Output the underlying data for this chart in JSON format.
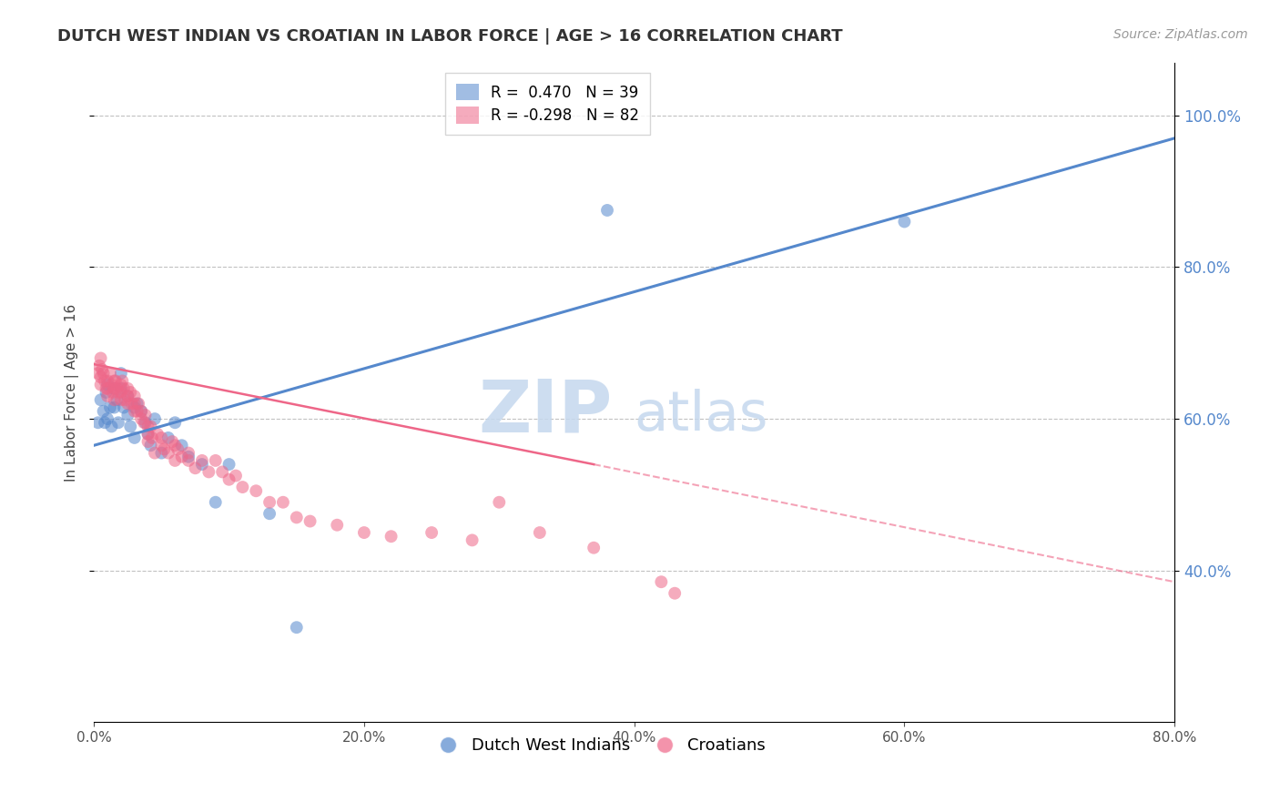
{
  "title": "DUTCH WEST INDIAN VS CROATIAN IN LABOR FORCE | AGE > 16 CORRELATION CHART",
  "source": "Source: ZipAtlas.com",
  "ylabel": "In Labor Force | Age > 16",
  "xlim": [
    0.0,
    0.8
  ],
  "ylim": [
    0.2,
    1.07
  ],
  "xticks": [
    0.0,
    0.2,
    0.4,
    0.6,
    0.8
  ],
  "yticks_right": [
    0.4,
    0.6,
    0.8,
    1.0
  ],
  "grid_color": "#bbbbbb",
  "background": "#ffffff",
  "legend_blue_color": "#5588cc",
  "legend_pink_color": "#ee6688",
  "blue_scatter": {
    "x": [
      0.003,
      0.005,
      0.007,
      0.008,
      0.009,
      0.01,
      0.01,
      0.012,
      0.013,
      0.015,
      0.015,
      0.017,
      0.018,
      0.02,
      0.02,
      0.022,
      0.025,
      0.025,
      0.027,
      0.03,
      0.03,
      0.032,
      0.035,
      0.038,
      0.04,
      0.042,
      0.045,
      0.05,
      0.055,
      0.06,
      0.065,
      0.07,
      0.08,
      0.09,
      0.1,
      0.13,
      0.15,
      0.38,
      0.6
    ],
    "y": [
      0.595,
      0.625,
      0.61,
      0.595,
      0.635,
      0.6,
      0.645,
      0.615,
      0.59,
      0.615,
      0.64,
      0.625,
      0.595,
      0.64,
      0.66,
      0.615,
      0.605,
      0.63,
      0.59,
      0.615,
      0.575,
      0.62,
      0.61,
      0.595,
      0.58,
      0.565,
      0.6,
      0.555,
      0.575,
      0.595,
      0.565,
      0.55,
      0.54,
      0.49,
      0.54,
      0.475,
      0.325,
      0.875,
      0.86
    ]
  },
  "pink_scatter": {
    "x": [
      0.003,
      0.004,
      0.005,
      0.005,
      0.005,
      0.006,
      0.007,
      0.008,
      0.009,
      0.01,
      0.01,
      0.01,
      0.012,
      0.013,
      0.014,
      0.015,
      0.015,
      0.015,
      0.016,
      0.017,
      0.018,
      0.02,
      0.02,
      0.02,
      0.021,
      0.022,
      0.023,
      0.025,
      0.025,
      0.025,
      0.027,
      0.028,
      0.03,
      0.03,
      0.03,
      0.032,
      0.033,
      0.035,
      0.035,
      0.037,
      0.038,
      0.04,
      0.04,
      0.04,
      0.042,
      0.043,
      0.045,
      0.047,
      0.05,
      0.05,
      0.052,
      0.055,
      0.058,
      0.06,
      0.06,
      0.062,
      0.065,
      0.07,
      0.07,
      0.075,
      0.08,
      0.085,
      0.09,
      0.095,
      0.1,
      0.105,
      0.11,
      0.12,
      0.13,
      0.14,
      0.15,
      0.16,
      0.18,
      0.2,
      0.22,
      0.25,
      0.28,
      0.3,
      0.33,
      0.37,
      0.42,
      0.43
    ],
    "y": [
      0.66,
      0.67,
      0.68,
      0.655,
      0.645,
      0.665,
      0.66,
      0.65,
      0.64,
      0.65,
      0.64,
      0.63,
      0.66,
      0.645,
      0.635,
      0.65,
      0.64,
      0.625,
      0.65,
      0.64,
      0.635,
      0.645,
      0.635,
      0.625,
      0.65,
      0.64,
      0.625,
      0.64,
      0.63,
      0.62,
      0.635,
      0.62,
      0.61,
      0.62,
      0.63,
      0.61,
      0.62,
      0.6,
      0.61,
      0.595,
      0.605,
      0.59,
      0.58,
      0.57,
      0.59,
      0.575,
      0.555,
      0.58,
      0.565,
      0.575,
      0.56,
      0.555,
      0.57,
      0.565,
      0.545,
      0.56,
      0.55,
      0.545,
      0.555,
      0.535,
      0.545,
      0.53,
      0.545,
      0.53,
      0.52,
      0.525,
      0.51,
      0.505,
      0.49,
      0.49,
      0.47,
      0.465,
      0.46,
      0.45,
      0.445,
      0.45,
      0.44,
      0.49,
      0.45,
      0.43,
      0.385,
      0.37
    ]
  },
  "blue_line": {
    "x": [
      0.0,
      0.8
    ],
    "y": [
      0.565,
      0.97
    ]
  },
  "pink_solid_line": {
    "x": [
      0.0,
      0.37
    ],
    "y": [
      0.672,
      0.54
    ]
  },
  "pink_dashed_line": {
    "x": [
      0.37,
      0.8
    ],
    "y": [
      0.54,
      0.385
    ]
  },
  "legend_blue_text": "R =  0.470   N = 39",
  "legend_pink_text": "R = -0.298   N = 82",
  "watermark_zip": "ZIP",
  "watermark_atlas": "atlas",
  "watermark_color_zip": "#c5d8ee",
  "watermark_color_atlas": "#c5d8ee",
  "marker_size": 100,
  "marker_alpha": 0.55,
  "title_fontsize": 13,
  "axis_label_fontsize": 11,
  "tick_fontsize": 11,
  "legend_fontsize": 12,
  "source_fontsize": 10
}
